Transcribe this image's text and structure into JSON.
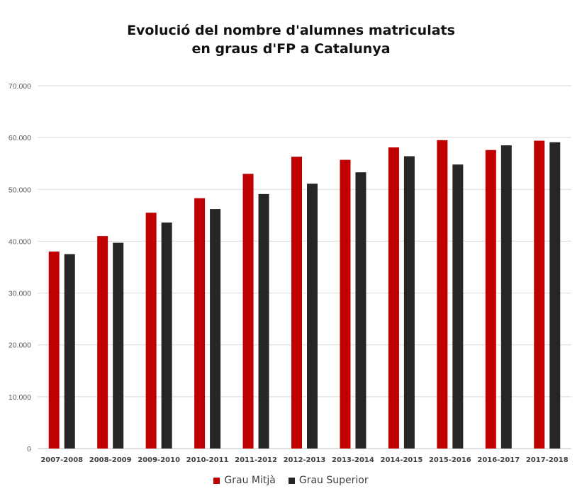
{
  "chart_data": {
    "type": "bar",
    "title_lines": [
      "Evolució del nombre d'alumnes matriculats",
      "en graus d'FP a Catalunya"
    ],
    "categories": [
      "2007-2008",
      "2008-2009",
      "2009-2010",
      "2010-2011",
      "2011-2012",
      "2012-2013",
      "2013-2014",
      "2014-2015",
      "2015-2016",
      "2016-2017",
      "2017-2018"
    ],
    "series": [
      {
        "name": "Grau Mitjà",
        "color": "#c00000",
        "values": [
          38000,
          41000,
          45500,
          48300,
          53000,
          56300,
          55700,
          58100,
          59500,
          57600,
          59400
        ]
      },
      {
        "name": "Grau Superior",
        "color": "#262626",
        "values": [
          37500,
          39700,
          43600,
          46200,
          49100,
          51100,
          53300,
          56400,
          54800,
          58500,
          59100
        ]
      }
    ],
    "y_ticks": [
      "0",
      "10.000",
      "20.000",
      "30.000",
      "40.000",
      "50.000",
      "60.000",
      "70.000"
    ],
    "ylim": [
      0,
      70000
    ],
    "grid": true,
    "legend_position": "bottom"
  }
}
